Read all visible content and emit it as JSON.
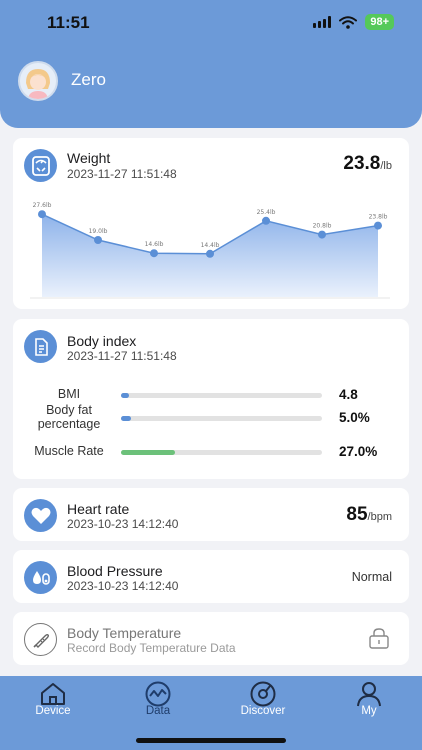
{
  "status_bar": {
    "time": "11:51",
    "battery": "98+"
  },
  "profile": {
    "name": "Zero"
  },
  "weight": {
    "title": "Weight",
    "timestamp": "2023-11-27 11:51:48",
    "value": "23.8",
    "unit": "/lb"
  },
  "chart_data": {
    "type": "area",
    "title": "",
    "xlabel": "",
    "ylabel": "",
    "series": [
      {
        "values": [
          27.6,
          19.0,
          14.6,
          14.4,
          25.4,
          20.8,
          23.8
        ]
      }
    ],
    "data_labels": [
      "27.6lb",
      "19.0lb",
      "14.6lb",
      "14.4lb",
      "25.4lb",
      "20.8lb",
      "23.8lb"
    ],
    "ylim": [
      0,
      30
    ],
    "grid": false,
    "colors": {
      "line": "#5b8fd6",
      "fill_top": "#8eb3ea",
      "fill_bottom": "#eaf1fc"
    }
  },
  "body_index": {
    "title": "Body index",
    "timestamp": "2023-11-27 11:51:48",
    "rows": [
      {
        "label": "BMI",
        "value": "4.8",
        "fraction": 0.04,
        "color": "#5b8fd6"
      },
      {
        "label": "Body fat percentage",
        "value": "5.0%",
        "fraction": 0.05,
        "color": "#5b8fd6"
      },
      {
        "label": "Muscle Rate",
        "value": "27.0%",
        "fraction": 0.27,
        "color": "#6cc17a"
      }
    ]
  },
  "heart_rate": {
    "title": "Heart rate",
    "timestamp": "2023-10-23 14:12:40",
    "value": "85",
    "unit": "/bpm"
  },
  "blood_pressure": {
    "title": "Blood Pressure",
    "timestamp": "2023-10-23 14:12:40",
    "status": "Normal"
  },
  "body_temperature": {
    "title": "Body Temperature",
    "subtitle": "Record Body Temperature Data"
  },
  "tabs": [
    {
      "label": "Device",
      "icon": "home-icon",
      "active": false
    },
    {
      "label": "Data",
      "icon": "chart-icon",
      "active": true
    },
    {
      "label": "Discover",
      "icon": "compass-icon",
      "active": false
    },
    {
      "label": "My",
      "icon": "person-icon",
      "active": false
    }
  ],
  "theme": {
    "accent": "#6c9ad8",
    "icon_bg": "#5b8fd6",
    "muscle_bar": "#6cc17a"
  }
}
